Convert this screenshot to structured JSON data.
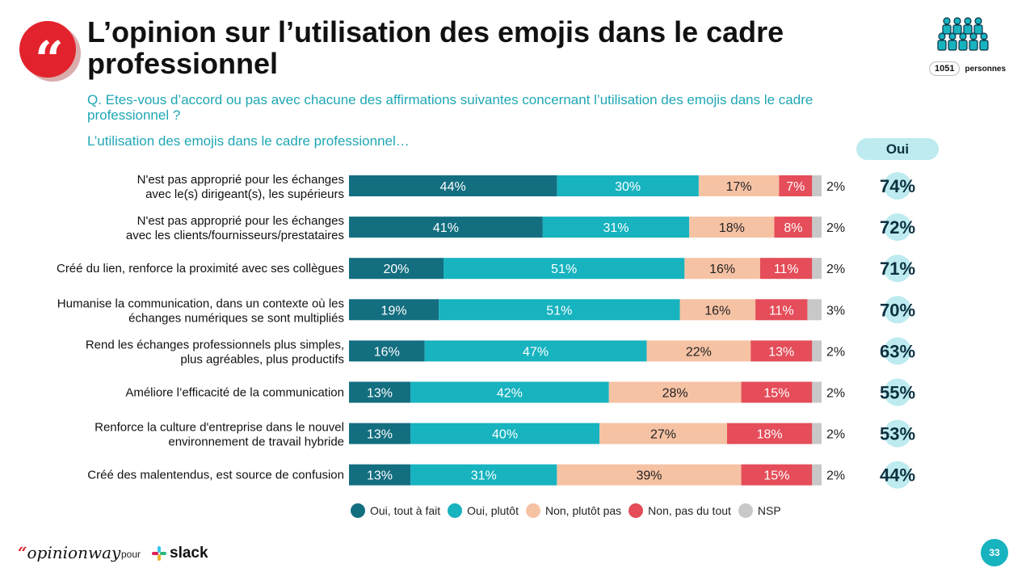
{
  "header": {
    "title": "L’opinion sur l’utilisation des emojis dans le cadre professionnel",
    "question": "Q. Etes-vous d’accord ou pas avec chacune des affirmations suivantes concernant l’utilisation des emojis dans le cadre professionnel ?",
    "subquestion": "L’utilisation des emojis dans le cadre professionnel…",
    "quote_icon": "quote-mark-icon"
  },
  "sample": {
    "count": "1051",
    "label": "personnes",
    "icon": "people-group-icon"
  },
  "oui_header": "Oui",
  "footer": {
    "brand_quote": "“",
    "brand_name": "opinionway",
    "pour": "pour",
    "partner": "slack",
    "page": "33"
  },
  "colors": {
    "Oui, tout à fait": "#136e80",
    "Oui, plutôt": "#17b3bf",
    "Non, plutôt pas": "#f6c2a4",
    "Non, pas du tout": "#e44d59",
    "NSP": "#c8c8c8",
    "accent": "#e2232d",
    "oui_circle": "#bdebef"
  },
  "chart_data": {
    "type": "bar",
    "orientation": "horizontal",
    "stacked": true,
    "categories": [
      "N'est pas approprié pour les échanges\navec le(s) dirigeant(s), les supérieurs",
      "N'est pas approprié pour les échanges\navec les clients/fournisseurs/prestataires",
      "Créé du lien, renforce la proximité avec ses collègues",
      "Humanise la communication, dans un contexte où les\néchanges numériques se sont multipliés",
      "Rend les échanges professionnels plus simples,\nplus agréables, plus productifs",
      "Améliore l’efficacité de la communication",
      "Renforce la culture d'entreprise dans le nouvel\nenvironnement de travail hybride",
      "Créé des malentendus, est source de confusion"
    ],
    "series": [
      {
        "name": "Oui, tout à fait",
        "values": [
          44,
          41,
          20,
          19,
          16,
          13,
          13,
          13
        ]
      },
      {
        "name": "Oui, plutôt",
        "values": [
          30,
          31,
          51,
          51,
          47,
          42,
          40,
          31
        ]
      },
      {
        "name": "Non, plutôt pas",
        "values": [
          17,
          18,
          16,
          16,
          22,
          28,
          27,
          39
        ]
      },
      {
        "name": "Non, pas du tout",
        "values": [
          7,
          8,
          11,
          11,
          13,
          15,
          18,
          15
        ]
      },
      {
        "name": "NSP",
        "values": [
          2,
          2,
          2,
          3,
          2,
          2,
          2,
          2
        ]
      }
    ],
    "totals": {
      "name": "Oui",
      "values": [
        74,
        72,
        71,
        70,
        63,
        55,
        53,
        44
      ]
    },
    "unit": "%",
    "legend_position": "bottom"
  }
}
